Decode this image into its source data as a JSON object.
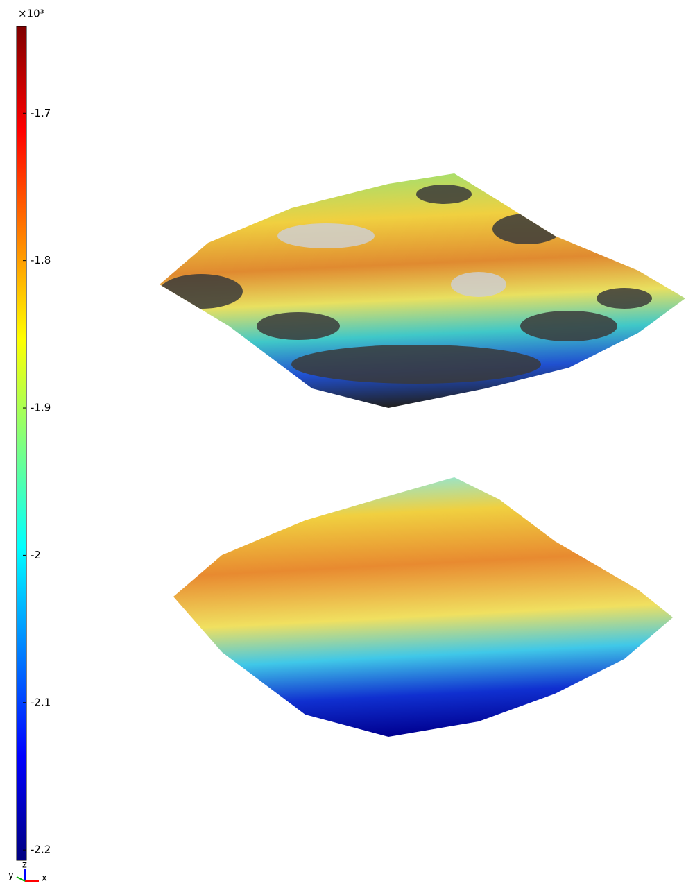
{
  "chart_data": {
    "type": "colorbar",
    "scale_label": "×10³",
    "clim": [
      -2.207,
      -1.641
    ],
    "ticks": [
      -1.7,
      -1.8,
      -1.9,
      -2,
      -2.1,
      -2.2
    ],
    "colormap": [
      "#00007f",
      "#0000ff",
      "#007fff",
      "#00ffff",
      "#7fff7f",
      "#ffff00",
      "#ff7f00",
      "#ff0000",
      "#7f0000"
    ],
    "triad_labels": {
      "x": "x",
      "y": "y",
      "z": "z"
    }
  }
}
